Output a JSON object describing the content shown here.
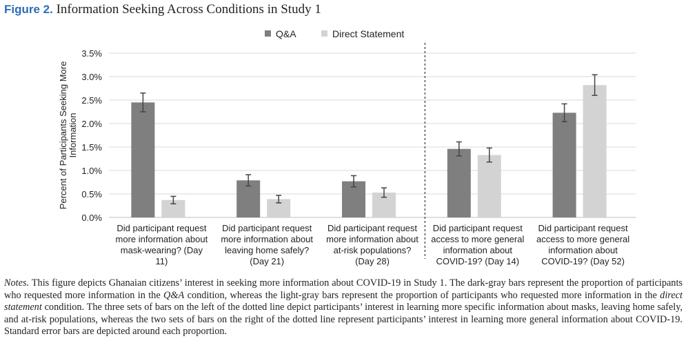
{
  "figure": {
    "label": "Figure 2.",
    "title": "Information Seeking Across Conditions in Study 1"
  },
  "chart_data": {
    "type": "bar",
    "ylabel": "Percent of Participants Seeking More Information",
    "ylim": [
      0,
      3.5
    ],
    "y_ticks": [
      "0.0%",
      "0.5%",
      "1.0%",
      "1.5%",
      "2.0%",
      "2.5%",
      "3.0%",
      "3.5%"
    ],
    "y_tick_values": [
      0,
      0.5,
      1.0,
      1.5,
      2.0,
      2.5,
      3.0,
      3.5
    ],
    "grid": true,
    "legend_position": "top",
    "divider_after_category": 2,
    "categories": [
      [
        "Did participant request",
        "more information about",
        "mask-wearing? (Day",
        "11)"
      ],
      [
        "Did participant request",
        "more information about",
        "leaving home safely?",
        "(Day 21)"
      ],
      [
        "Did participant request",
        "more information about",
        "at-risk populations?",
        "(Day 28)"
      ],
      [
        "Did participant request",
        "access to more general",
        "information about",
        "COVID-19? (Day 14)"
      ],
      [
        "Did participant request",
        "access to more general",
        "information about",
        "COVID-19? (Day 52)"
      ]
    ],
    "series": [
      {
        "name": "Q&A",
        "color": "#7f7f7f",
        "values": [
          2.45,
          0.79,
          0.77,
          1.46,
          2.23
        ],
        "errors": [
          0.2,
          0.12,
          0.12,
          0.15,
          0.19
        ]
      },
      {
        "name": "Direct Statement",
        "color": "#d3d3d3",
        "values": [
          0.37,
          0.39,
          0.53,
          1.33,
          2.82
        ],
        "errors": [
          0.08,
          0.08,
          0.1,
          0.15,
          0.22
        ]
      }
    ]
  },
  "notes": {
    "lead": "Notes.",
    "text_1": " This figure depicts Ghanaian citizens’ interest in seeking more information about COVID-19 in Study 1. The dark-gray bars represent the proportion of participants who requested more information in the ",
    "qa": "Q&A",
    "text_2": " condition, whereas the light-gray bars represent the proportion of participants who requested more information in the ",
    "direct": "direct statement",
    "text_3": " condition. The three sets of bars on the left of the dotted line depict participants’ interest in learning more specific information about masks, leaving home safely, and at-risk populations, whereas the two sets of bars on the right of the dotted line represent participants’ interest in learning more general information about COVID-19. Standard error bars are depicted around each proportion."
  }
}
